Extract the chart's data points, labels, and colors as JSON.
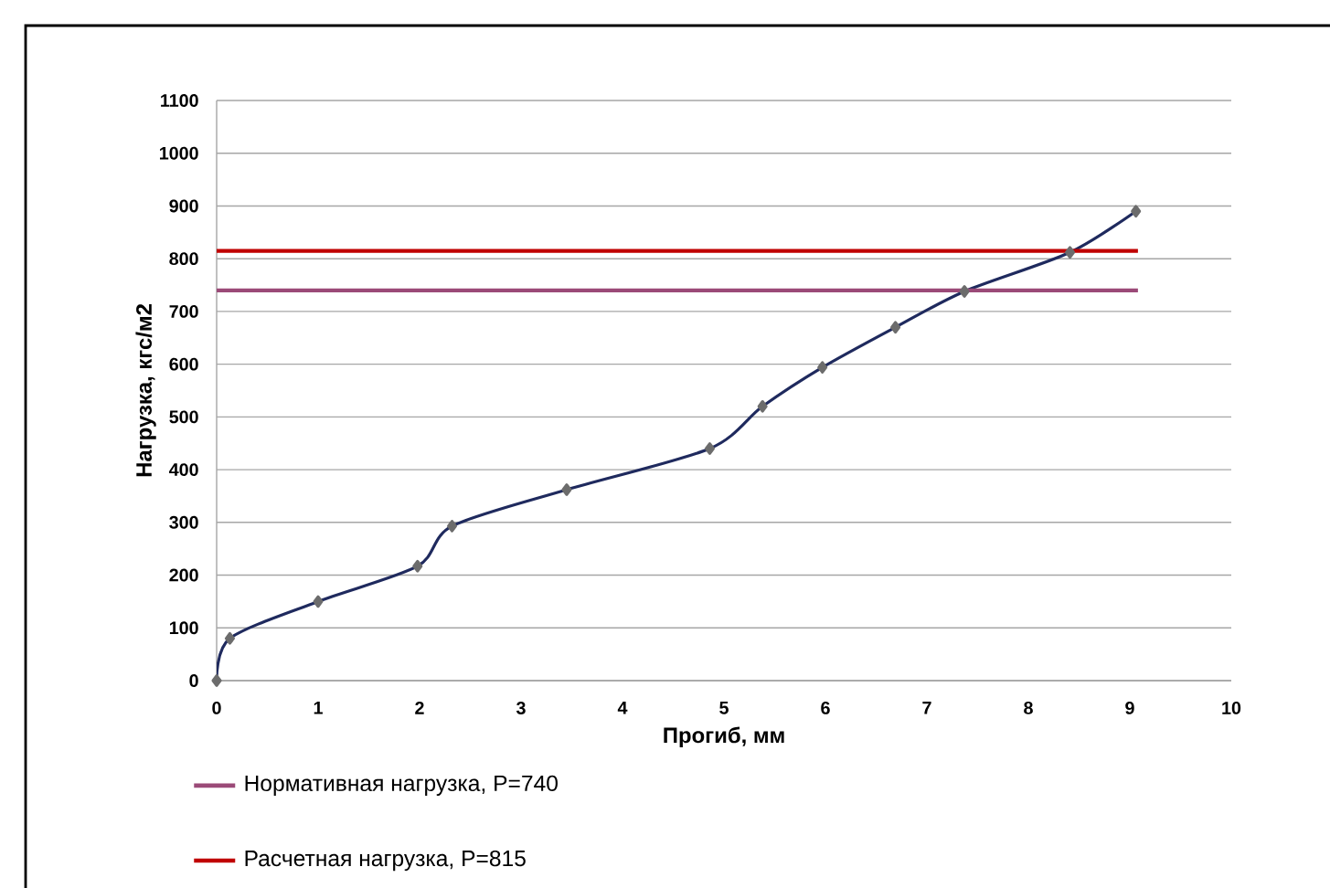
{
  "chart_data": {
    "type": "line",
    "xlabel": "Прогиб, мм",
    "ylabel": "Нагрузка, кгс/м2",
    "xlim": [
      0,
      10
    ],
    "ylim": [
      0,
      1100
    ],
    "xticks": [
      0,
      1,
      2,
      3,
      4,
      5,
      6,
      7,
      8,
      9,
      10
    ],
    "yticks": [
      0,
      100,
      200,
      300,
      400,
      500,
      600,
      700,
      800,
      900,
      1000,
      1100
    ],
    "grid": "y",
    "legend": "bottom",
    "series": [
      {
        "color": "#1f2a5e",
        "marker": "diamond",
        "x": [
          0,
          0.13,
          1.0,
          1.98,
          2.32,
          3.45,
          4.86,
          5.38,
          5.97,
          6.69,
          7.37,
          8.41,
          9.06
        ],
        "values": [
          0,
          80,
          150,
          217,
          293,
          362,
          440,
          520,
          594,
          670,
          738,
          812,
          890
        ]
      },
      {
        "name": "Нормативная  нагрузка, P=740",
        "color": "#9b4a78",
        "marker": "none",
        "x": [
          0,
          9.08
        ],
        "values": [
          740,
          740
        ]
      },
      {
        "name": "Расчетная  нагрузка, P=815",
        "color": "#c00000",
        "marker": "none",
        "x": [
          0,
          9.08
        ],
        "values": [
          815,
          815
        ]
      }
    ]
  }
}
